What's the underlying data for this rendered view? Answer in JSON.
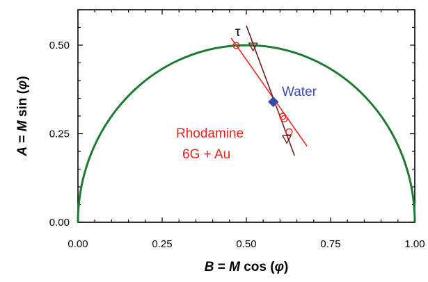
{
  "chart_data": {
    "type": "scatter",
    "xlim": [
      0,
      1
    ],
    "ylim": [
      0,
      0.6
    ],
    "x_ticks": [
      "0.00",
      "0.25",
      "0.50",
      "0.75",
      "1.00"
    ],
    "y_ticks": [
      "0.00",
      "0.25",
      "0.50"
    ],
    "x_tick_values": [
      0,
      0.25,
      0.5,
      0.75,
      1
    ],
    "y_tick_values": [
      0,
      0.25,
      0.5
    ],
    "xlabel": {
      "pre": "B",
      "mid1": " = ",
      "m": "M",
      "mid2": " cos (",
      "phi": "φ",
      "post": ")"
    },
    "ylabel": {
      "pre": "A",
      "mid1": " = ",
      "m": "M",
      "mid2": " sin (",
      "phi": "φ",
      "post": ")"
    },
    "grid": false,
    "semicircle": {
      "center": [
        0.5,
        0
      ],
      "radius": 0.5,
      "color": "#1e7a30"
    },
    "series": [
      {
        "name": "Rhodamine 6G + Au",
        "marker": "circle",
        "color": "#e8221c",
        "points": [
          [
            0.47,
            0.499
          ],
          [
            0.608,
            0.299
          ],
          [
            0.612,
            0.292
          ],
          [
            0.627,
            0.255
          ]
        ],
        "fit_line": [
          [
            0.455,
            0.52
          ],
          [
            0.68,
            0.215
          ]
        ]
      },
      {
        "name": "τ",
        "marker": "triangle-down",
        "color": "#6b1f1a",
        "points": [
          [
            0.52,
            0.496
          ],
          [
            0.62,
            0.235
          ]
        ],
        "fit_line": [
          [
            0.5,
            0.555
          ],
          [
            0.643,
            0.188
          ]
        ]
      },
      {
        "name": "Water",
        "marker": "diamond",
        "color": "#3a4aa0",
        "points": [
          [
            0.58,
            0.34
          ]
        ]
      }
    ],
    "annotations": {
      "tau": "τ",
      "water": "Water",
      "rhodamine_line1": "Rhodamine",
      "rhodamine_line2": "6G + Au"
    }
  }
}
